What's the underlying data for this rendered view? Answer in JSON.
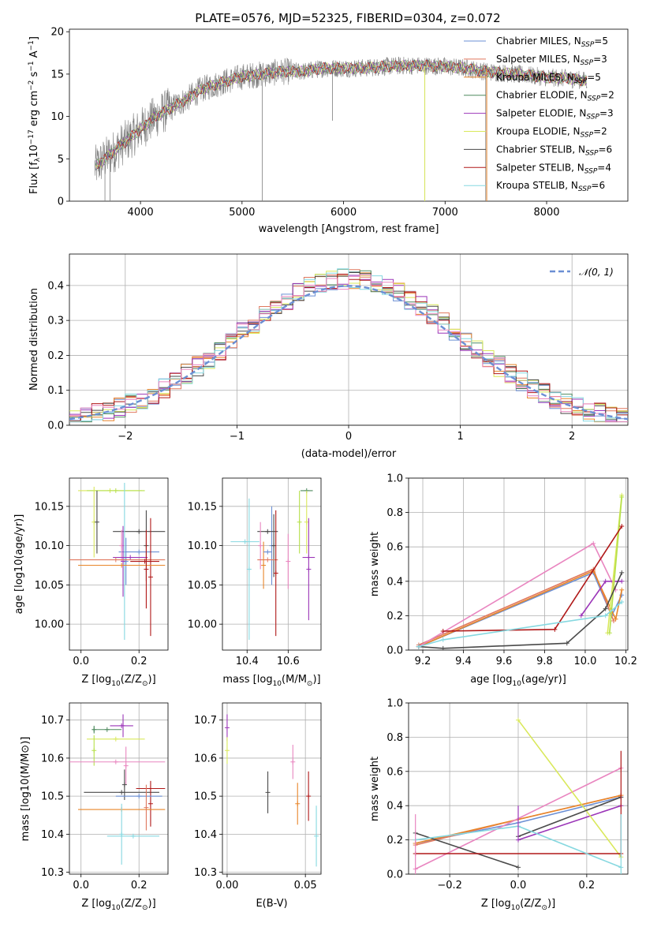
{
  "title": "PLATE=0576, MJD=52325, FIBERID=0304, z=0.072",
  "models": [
    {
      "key": "chab_miles",
      "label": "Chabrier MILES, N",
      "sub": "SSP",
      "n": "=5",
      "color": "#6b8fd4"
    },
    {
      "key": "salp_miles",
      "label": "Salpeter MILES, N",
      "sub": "SSP",
      "n": "=3",
      "color": "#e0785e"
    },
    {
      "key": "krou_miles",
      "label": "Kroupa MILES, N",
      "sub": "SSP",
      "n": "=5",
      "color": "#e8862a"
    },
    {
      "key": "chab_elodie",
      "label": "Chabrier ELODIE, N",
      "sub": "SSP",
      "n": "=2",
      "color": "#4e8a5e"
    },
    {
      "key": "salp_elodie",
      "label": "Salpeter ELODIE, N",
      "sub": "SSP",
      "n": "=3",
      "color": "#9b35b8"
    },
    {
      "key": "krou_elodie",
      "label": "Kroupa ELODIE, N",
      "sub": "SSP",
      "n": "=2",
      "color": "#d9e85a"
    },
    {
      "key": "chab_stelib",
      "label": "Chabrier STELIB, N",
      "sub": "SSP",
      "n": "=6",
      "color": "#4a4a4a"
    },
    {
      "key": "salp_stelib",
      "label": "Salpeter STELIB, N",
      "sub": "SSP",
      "n": "=4",
      "color": "#b01818"
    },
    {
      "key": "krou_stelib",
      "label": "Kroupa STELIB, N",
      "sub": "SSP",
      "n": "=6",
      "color": "#86d8e0"
    }
  ],
  "extra_colors": {
    "pink": "#e986c0",
    "lime": "#b6e04a"
  },
  "chart_data": [
    {
      "id": "spectrum",
      "type": "line",
      "xlabel": "wavelength [Angstrom, rest frame]",
      "ylabel": "Flux [f",
      "ylabel_sub": "λ",
      "ylabel_rest": "10",
      "ylabel_sup1": "−17",
      "ylabel_rest2": " erg cm",
      "ylabel_sup2": "−2",
      "ylabel_rest3": " s",
      "ylabel_sup3": "−1",
      "ylabel_rest4": " A",
      "ylabel_sup4": "−1",
      "ylabel_end": "]",
      "xlim": [
        3300,
        8800
      ],
      "ylim": [
        0,
        20.3
      ],
      "xticks": [
        4000,
        5000,
        6000,
        7000,
        8000
      ],
      "yticks": [
        0,
        5,
        10,
        15,
        20
      ],
      "envelope_x": [
        3550,
        3700,
        3850,
        4000,
        4150,
        4300,
        4450,
        4600,
        4800,
        5000,
        5200,
        5400,
        5600,
        5800,
        6000,
        6200,
        6400,
        6600,
        6800,
        7000,
        7200,
        7400,
        7600,
        7800,
        8000,
        8200,
        8400
      ],
      "envelope_y": [
        4.0,
        5.5,
        7.0,
        8.5,
        10.0,
        11.0,
        12.0,
        13.2,
        14.0,
        14.7,
        15.0,
        15.3,
        15.3,
        15.7,
        15.7,
        15.7,
        15.9,
        16.0,
        16.0,
        15.9,
        15.7,
        15.3,
        15.1,
        14.9,
        14.6,
        14.5,
        14.2
      ]
    },
    {
      "id": "residuals",
      "type": "histogram",
      "xlabel": "(data-model)/error",
      "ylabel": "Normed distribution",
      "xlim": [
        -2.5,
        2.5
      ],
      "ylim": [
        0,
        0.49
      ],
      "xticks": [
        -2,
        -1,
        0,
        1,
        2
      ],
      "yticks": [
        0.0,
        0.1,
        0.2,
        0.3,
        0.4
      ],
      "legend": "𝒩(0, 1)",
      "normal_color": "#6b8fd4"
    },
    {
      "id": "age_vs_Z",
      "type": "errorbar",
      "xlabel": "Z [log",
      "xlabel_sub": "10",
      "xlabel_rest": "(Z/Z",
      "xlabel_sub2": "⊙",
      "xlabel_end": ")]",
      "ylabel": "age  [log10(age/yr)]",
      "xlim": [
        -0.04,
        0.3
      ],
      "ylim": [
        9.967,
        10.186
      ],
      "xticks": [
        0.0,
        0.2
      ],
      "xtick_labels": [
        "0.0",
        "0.2"
      ],
      "yticks": [
        10.0,
        10.05,
        10.1,
        10.15
      ],
      "ytick_labels": [
        "10.00",
        "10.05",
        "10.10",
        "10.15"
      ],
      "points": [
        {
          "c": "krou_elodie",
          "x": 0.1,
          "xe": 0.11,
          "y": 10.17,
          "ye": 0.0
        },
        {
          "c": "lime",
          "x": 0.12,
          "xe": 0.1,
          "y": 10.17,
          "ye": 0.0
        },
        {
          "c": "krou_elodie",
          "x": 0.045,
          "xe": 0.0,
          "y": 10.13,
          "ye": 0.045
        },
        {
          "c": "chab_stelib",
          "x": 0.055,
          "xe": 0.0,
          "y": 10.13,
          "ye": 0.04
        },
        {
          "c": "chab_stelib",
          "x": 0.2,
          "xe": 0.09,
          "y": 10.118,
          "ye": 0.0
        },
        {
          "c": "chab_stelib",
          "x": 0.225,
          "xe": 0.0,
          "y": 10.1,
          "ye": 0.045
        },
        {
          "c": "chab_miles",
          "x": 0.2,
          "xe": 0.07,
          "y": 10.092,
          "ye": 0.0
        },
        {
          "c": "krou_stelib",
          "x": 0.15,
          "xe": 0.0,
          "y": 10.08,
          "ye": 0.1
        },
        {
          "c": "pink",
          "x": 0.14,
          "xe": 0.0,
          "y": 10.1,
          "ye": 0.02
        },
        {
          "c": "chab_miles",
          "x": 0.155,
          "xe": 0.0,
          "y": 10.08,
          "ye": 0.03
        },
        {
          "c": "salp_elodie",
          "x": 0.17,
          "xe": 0.06,
          "y": 10.085,
          "ye": 0.0
        },
        {
          "c": "salp_elodie",
          "x": 0.145,
          "xe": 0.0,
          "y": 10.08,
          "ye": 0.045
        },
        {
          "c": "salp_miles",
          "x": 0.12,
          "xe": 0.17,
          "y": 10.082,
          "ye": 0.0
        },
        {
          "c": "salp_stelib",
          "x": 0.22,
          "xe": 0.05,
          "y": 10.08,
          "ye": 0.0
        },
        {
          "c": "salp_stelib",
          "x": 0.24,
          "xe": 0.0,
          "y": 10.06,
          "ye": 0.075
        },
        {
          "c": "krou_miles",
          "x": 0.14,
          "xe": 0.15,
          "y": 10.075,
          "ye": 0.0
        },
        {
          "c": "salp_stelib",
          "x": 0.225,
          "xe": 0.0,
          "y": 10.07,
          "ye": 0.05
        }
      ]
    },
    {
      "id": "age_vs_mass",
      "type": "errorbar",
      "xlabel": "mass [log",
      "xlabel_sub": "10",
      "xlabel_rest": "(M/M",
      "xlabel_sub2": "⊙",
      "xlabel_end": ")]",
      "xlim": [
        10.28,
        10.76
      ],
      "ylim": [
        9.967,
        10.186
      ],
      "xticks": [
        10.4,
        10.6
      ],
      "xtick_labels": [
        "10.4",
        "10.6"
      ],
      "yticks": [
        10.0,
        10.05,
        10.1,
        10.15
      ],
      "ytick_labels": [
        "10.00",
        "10.05",
        "10.10",
        "10.15"
      ],
      "points": [
        {
          "c": "chab_elodie",
          "x": 10.69,
          "xe": 0.03,
          "y": 10.17,
          "ye": 0.0
        },
        {
          "c": "krou_elodie",
          "x": 10.69,
          "xe": 0.0,
          "y": 10.13,
          "ye": 0.04
        },
        {
          "c": "lime",
          "x": 10.655,
          "xe": 0.0,
          "y": 10.13,
          "ye": 0.04
        },
        {
          "c": "chab_miles",
          "x": 10.52,
          "xe": 0.0,
          "y": 10.1,
          "ye": 0.05
        },
        {
          "c": "chab_stelib",
          "x": 10.5,
          "xe": 0.05,
          "y": 10.118,
          "ye": 0.0
        },
        {
          "c": "chab_stelib",
          "x": 10.53,
          "xe": 0.0,
          "y": 10.1,
          "ye": 0.04
        },
        {
          "c": "krou_stelib",
          "x": 10.39,
          "xe": 0.07,
          "y": 10.105,
          "ye": 0.0
        },
        {
          "c": "krou_stelib",
          "x": 10.41,
          "xe": 0.0,
          "y": 10.07,
          "ye": 0.09
        },
        {
          "c": "pink",
          "x": 10.465,
          "xe": 0.0,
          "y": 10.1,
          "ye": 0.03
        },
        {
          "c": "pink",
          "x": 10.6,
          "xe": 0.0,
          "y": 10.08,
          "ye": 0.035
        },
        {
          "c": "salp_elodie",
          "x": 10.7,
          "xe": 0.03,
          "y": 10.085,
          "ye": 0.0
        },
        {
          "c": "salp_elodie",
          "x": 10.7,
          "xe": 0.0,
          "y": 10.07,
          "ye": 0.065
        },
        {
          "c": "salp_miles",
          "x": 10.5,
          "xe": 0.05,
          "y": 10.082,
          "ye": 0.0
        },
        {
          "c": "krou_miles",
          "x": 10.48,
          "xe": 0.0,
          "y": 10.075,
          "ye": 0.03
        },
        {
          "c": "salp_stelib",
          "x": 10.54,
          "xe": 0.0,
          "y": 10.065,
          "ye": 0.08
        },
        {
          "c": "chab_miles",
          "x": 10.5,
          "xe": 0.02,
          "y": 10.092,
          "ye": 0.0
        }
      ]
    },
    {
      "id": "mw_vs_age",
      "type": "line",
      "xlabel": "age  [log",
      "xlabel_sub": "10",
      "xlabel_rest": "(age/yr)]",
      "ylabel": "mass weight",
      "xlim": [
        9.13,
        10.21
      ],
      "ylim": [
        0.0,
        1.0
      ],
      "xticks": [
        9.2,
        9.4,
        9.6,
        9.8,
        10.0,
        10.2
      ],
      "xtick_labels": [
        "9.2",
        "9.4",
        "9.6",
        "9.8",
        "10.0",
        "10.2"
      ],
      "yticks": [
        0.0,
        0.2,
        0.4,
        0.6,
        0.8,
        1.0
      ],
      "ytick_labels": [
        "0.0",
        "0.2",
        "0.4",
        "0.6",
        "0.8",
        "1.0"
      ],
      "series": [
        {
          "c": "chab_miles",
          "x": [
            9.18,
            10.04,
            10.13,
            10.18
          ],
          "y": [
            0.02,
            0.45,
            0.2,
            0.32
          ]
        },
        {
          "c": "salp_miles",
          "x": [
            9.18,
            10.04,
            10.14
          ],
          "y": [
            0.03,
            0.47,
            0.17
          ]
        },
        {
          "c": "krou_miles",
          "x": [
            9.18,
            10.04,
            10.15,
            10.18
          ],
          "y": [
            0.02,
            0.46,
            0.18,
            0.35
          ]
        },
        {
          "c": "pink",
          "x": [
            9.18,
            10.04,
            10.15
          ],
          "y": [
            0.02,
            0.62,
            0.35
          ]
        },
        {
          "c": "salp_elodie",
          "x": [
            9.98,
            10.1,
            10.18
          ],
          "y": [
            0.2,
            0.4,
            0.4
          ]
        },
        {
          "c": "krou_elodie",
          "x": [
            10.11,
            10.18
          ],
          "y": [
            0.1,
            0.9
          ]
        },
        {
          "c": "lime",
          "x": [
            10.12,
            10.18
          ],
          "y": [
            0.1,
            0.89
          ]
        },
        {
          "c": "chab_stelib",
          "x": [
            9.18,
            9.3,
            9.91,
            10.1,
            10.18
          ],
          "y": [
            0.02,
            0.01,
            0.04,
            0.24,
            0.45
          ]
        },
        {
          "c": "salp_stelib",
          "x": [
            9.3,
            9.85,
            10.18
          ],
          "y": [
            0.11,
            0.12,
            0.72
          ]
        },
        {
          "c": "krou_stelib",
          "x": [
            9.18,
            9.3,
            10.1,
            10.18
          ],
          "y": [
            0.02,
            0.06,
            0.2,
            0.28
          ]
        }
      ]
    },
    {
      "id": "mass_vs_Z",
      "type": "errorbar",
      "xlabel": "Z [log",
      "xlabel_sub": "10",
      "xlabel_rest": "(Z/Z",
      "xlabel_sub2": "⊙",
      "xlabel_end": ")]",
      "ylabel": "mass [log10(M/M⊙)]",
      "xlim": [
        -0.04,
        0.3
      ],
      "ylim": [
        10.295,
        10.745
      ],
      "xticks": [
        0.0,
        0.2
      ],
      "xtick_labels": [
        "0.0",
        "0.2"
      ],
      "yticks": [
        10.3,
        10.4,
        10.5,
        10.6,
        10.7
      ],
      "ytick_labels": [
        "10.3",
        "10.4",
        "10.5",
        "10.6",
        "10.7"
      ],
      "points": [
        {
          "c": "salp_elodie",
          "x": 0.14,
          "xe": 0.04,
          "y": 10.685,
          "ye": 0.0
        },
        {
          "c": "salp_elodie",
          "x": 0.145,
          "xe": 0.0,
          "y": 10.685,
          "ye": 0.03
        },
        {
          "c": "chab_elodie",
          "x": 0.09,
          "xe": 0.05,
          "y": 10.675,
          "ye": 0.0
        },
        {
          "c": "chab_elodie",
          "x": 0.045,
          "xe": 0.0,
          "y": 10.675,
          "ye": 0.01
        },
        {
          "c": "krou_elodie",
          "x": 0.12,
          "xe": 0.1,
          "y": 10.65,
          "ye": 0.0
        },
        {
          "c": "lime",
          "x": 0.045,
          "xe": 0.0,
          "y": 10.62,
          "ye": 0.04
        },
        {
          "c": "pink",
          "x": 0.12,
          "xe": 0.17,
          "y": 10.59,
          "ye": 0.0
        },
        {
          "c": "pink",
          "x": 0.155,
          "xe": 0.0,
          "y": 10.58,
          "ye": 0.05
        },
        {
          "c": "chab_stelib",
          "x": 0.15,
          "xe": 0.0,
          "y": 10.53,
          "ye": 0.04
        },
        {
          "c": "chab_stelib",
          "x": 0.14,
          "xe": 0.13,
          "y": 10.51,
          "ye": 0.0
        },
        {
          "c": "salp_stelib",
          "x": 0.24,
          "xe": 0.05,
          "y": 10.52,
          "ye": 0.0
        },
        {
          "c": "salp_stelib",
          "x": 0.24,
          "xe": 0.0,
          "y": 10.48,
          "ye": 0.06
        },
        {
          "c": "chab_miles",
          "x": 0.2,
          "xe": 0.08,
          "y": 10.5,
          "ye": 0.0
        },
        {
          "c": "krou_miles",
          "x": 0.14,
          "xe": 0.15,
          "y": 10.465,
          "ye": 0.0
        },
        {
          "c": "salp_miles",
          "x": 0.225,
          "xe": 0.0,
          "y": 10.47,
          "ye": 0.06
        },
        {
          "c": "krou_stelib",
          "x": 0.14,
          "xe": 0.0,
          "y": 10.4,
          "ye": 0.08
        },
        {
          "c": "krou_stelib",
          "x": 0.18,
          "xe": 0.09,
          "y": 10.395,
          "ye": 0.0
        }
      ]
    },
    {
      "id": "mass_vs_EBV",
      "type": "errorbar",
      "xlabel": "E(B-V)",
      "xlim": [
        -0.003,
        0.06
      ],
      "ylim": [
        10.295,
        10.745
      ],
      "xticks": [
        0.0,
        0.05
      ],
      "xtick_labels": [
        "0.00",
        "0.05"
      ],
      "yticks": [
        10.3,
        10.4,
        10.5,
        10.6,
        10.7
      ],
      "ytick_labels": [
        "10.3",
        "10.4",
        "10.5",
        "10.6",
        "10.7"
      ],
      "points": [
        {
          "c": "salp_elodie",
          "x": 0.0,
          "xe": 0.0,
          "y": 10.68,
          "ye": 0.035
        },
        {
          "c": "krou_elodie",
          "x": 0.0,
          "xe": 0.0,
          "y": 10.62,
          "ye": 0.035
        },
        {
          "c": "chab_stelib",
          "x": 0.026,
          "xe": 0.0,
          "y": 10.51,
          "ye": 0.055
        },
        {
          "c": "pink",
          "x": 0.042,
          "xe": 0.0,
          "y": 10.59,
          "ye": 0.045
        },
        {
          "c": "krou_miles",
          "x": 0.045,
          "xe": 0.0,
          "y": 10.48,
          "ye": 0.055
        },
        {
          "c": "salp_stelib",
          "x": 0.052,
          "xe": 0.0,
          "y": 10.5,
          "ye": 0.065
        },
        {
          "c": "krou_stelib",
          "x": 0.057,
          "xe": 0.0,
          "y": 10.395,
          "ye": 0.08
        }
      ]
    },
    {
      "id": "mw_vs_Z",
      "type": "line",
      "xlabel": "Z [log",
      "xlabel_sub": "10",
      "xlabel_rest": "(Z/Z",
      "xlabel_sub2": "⊙",
      "xlabel_end": ")]",
      "ylabel": "mass weight",
      "xlim": [
        -0.32,
        0.32
      ],
      "ylim": [
        0.0,
        1.0
      ],
      "xticks": [
        -0.2,
        0.0,
        0.2
      ],
      "xtick_labels": [
        "−0.2",
        "0.0",
        "0.2"
      ],
      "yticks": [
        0.0,
        0.2,
        0.4,
        0.6,
        0.8,
        1.0
      ],
      "ytick_labels": [
        "0.0",
        "0.2",
        "0.4",
        "0.6",
        "0.8",
        "1.0"
      ],
      "series": [
        {
          "c": "chab_miles",
          "x": [
            -0.3,
            0.0,
            0.3
          ],
          "y": [
            0.18,
            0.3,
            0.45
          ]
        },
        {
          "c": "salp_miles",
          "x": [
            -0.3,
            0.0,
            0.3
          ],
          "y": [
            0.17,
            0.32,
            0.46
          ]
        },
        {
          "c": "krou_miles",
          "x": [
            -0.3,
            0.0,
            0.3
          ],
          "y": [
            0.18,
            0.32,
            0.46
          ]
        },
        {
          "c": "pink",
          "x": [
            -0.3,
            0.3
          ],
          "y": [
            0.03,
            0.62
          ]
        },
        {
          "c": "salp_elodie",
          "x": [
            0.0,
            0.3
          ],
          "y": [
            0.2,
            0.4
          ]
        },
        {
          "c": "krou_elodie",
          "x": [
            0.0,
            0.3
          ],
          "y": [
            0.9,
            0.1
          ]
        },
        {
          "c": "chab_stelib",
          "x": [
            -0.3,
            0.0
          ],
          "y": [
            0.24,
            0.04
          ]
        },
        {
          "c": "chab_stelib",
          "x": [
            0.0,
            0.3
          ],
          "y": [
            0.22,
            0.45
          ]
        },
        {
          "c": "salp_stelib",
          "x": [
            -0.3,
            0.3
          ],
          "y": [
            0.12,
            0.12
          ]
        },
        {
          "c": "krou_stelib",
          "x": [
            -0.3,
            0.0,
            0.3
          ],
          "y": [
            0.2,
            0.28,
            0.04
          ]
        }
      ],
      "vlines": [
        {
          "c": "salp_stelib",
          "x": 0.3,
          "y0": 0.1,
          "y1": 0.72
        },
        {
          "c": "pink",
          "x": -0.3,
          "y0": 0.0,
          "y1": 0.35
        },
        {
          "c": "salp_elodie",
          "x": 0.0,
          "y0": 0.2,
          "y1": 0.4
        },
        {
          "c": "krou_stelib",
          "x": 0.3,
          "y0": 0.0,
          "y1": 0.35
        }
      ]
    }
  ]
}
